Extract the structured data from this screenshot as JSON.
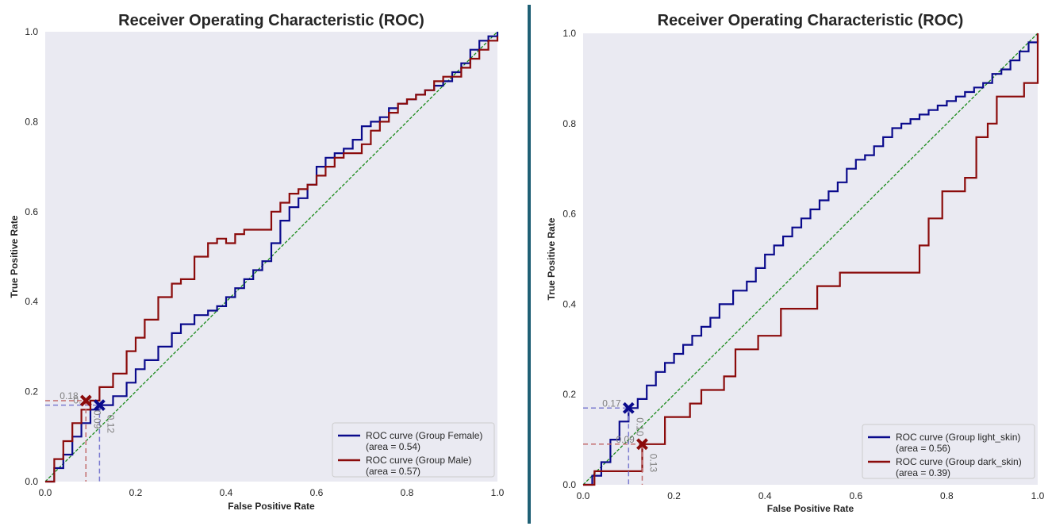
{
  "colors": {
    "plot_background": "#eaeaf2",
    "divider": "#1f6075",
    "series_1": "#0a0a8c",
    "series_2": "#8b0b0b",
    "diagonal": "#1a8a1a",
    "threshold_1": "#7b7bd0",
    "threshold_2": "#c26b6b",
    "text": "#262626",
    "threshold_text": "#808080"
  },
  "chart_data": [
    {
      "type": "line",
      "title": "Receiver Operating Characteristic (ROC)",
      "xlabel": "False Positive Rate",
      "ylabel": "True Positive Rate",
      "xlim": [
        0,
        1
      ],
      "ylim": [
        0,
        1
      ],
      "xticks": [
        "0.0",
        "0.2",
        "0.4",
        "0.6",
        "0.8",
        "1.0"
      ],
      "yticks": [
        "0.0",
        "0.2",
        "0.4",
        "0.6",
        "0.8",
        "1.0"
      ],
      "grid": false,
      "legend_position": "bottom-right",
      "diagonal": [
        [
          0,
          0
        ],
        [
          1,
          1
        ]
      ],
      "series": [
        {
          "name": "ROC curve (Group Female)",
          "area_label": "(area = 0.54)",
          "x": [
            0,
            0.02,
            0.04,
            0.06,
            0.08,
            0.1,
            0.12,
            0.15,
            0.18,
            0.2,
            0.22,
            0.25,
            0.28,
            0.3,
            0.33,
            0.36,
            0.38,
            0.4,
            0.42,
            0.44,
            0.46,
            0.48,
            0.5,
            0.52,
            0.54,
            0.56,
            0.58,
            0.6,
            0.62,
            0.64,
            0.66,
            0.68,
            0.7,
            0.72,
            0.74,
            0.76,
            0.78,
            0.8,
            0.82,
            0.84,
            0.86,
            0.88,
            0.9,
            0.92,
            0.94,
            0.96,
            0.98,
            1.0
          ],
          "y": [
            0,
            0.03,
            0.06,
            0.1,
            0.13,
            0.16,
            0.17,
            0.19,
            0.22,
            0.25,
            0.27,
            0.3,
            0.33,
            0.35,
            0.37,
            0.38,
            0.39,
            0.41,
            0.43,
            0.45,
            0.47,
            0.49,
            0.53,
            0.58,
            0.61,
            0.63,
            0.66,
            0.7,
            0.72,
            0.73,
            0.74,
            0.76,
            0.79,
            0.8,
            0.81,
            0.83,
            0.84,
            0.85,
            0.86,
            0.87,
            0.88,
            0.89,
            0.91,
            0.93,
            0.96,
            0.98,
            0.99,
            1.0
          ]
        },
        {
          "name": "ROC curve (Group Male)",
          "area_label": "(area = 0.57)",
          "x": [
            0,
            0.02,
            0.04,
            0.06,
            0.08,
            0.1,
            0.12,
            0.15,
            0.18,
            0.2,
            0.22,
            0.25,
            0.28,
            0.3,
            0.33,
            0.36,
            0.38,
            0.4,
            0.42,
            0.44,
            0.46,
            0.48,
            0.5,
            0.52,
            0.54,
            0.56,
            0.58,
            0.6,
            0.62,
            0.64,
            0.66,
            0.68,
            0.7,
            0.72,
            0.74,
            0.76,
            0.78,
            0.8,
            0.82,
            0.84,
            0.86,
            0.88,
            0.9,
            0.92,
            0.94,
            0.96,
            0.98,
            1.0
          ],
          "y": [
            0,
            0.05,
            0.09,
            0.13,
            0.16,
            0.18,
            0.21,
            0.24,
            0.29,
            0.32,
            0.36,
            0.41,
            0.44,
            0.45,
            0.5,
            0.53,
            0.54,
            0.53,
            0.55,
            0.56,
            0.56,
            0.56,
            0.6,
            0.62,
            0.64,
            0.65,
            0.66,
            0.68,
            0.7,
            0.72,
            0.73,
            0.73,
            0.75,
            0.78,
            0.8,
            0.82,
            0.84,
            0.85,
            0.86,
            0.87,
            0.89,
            0.9,
            0.9,
            0.92,
            0.94,
            0.96,
            0.98,
            0.99
          ]
        }
      ],
      "thresholds": [
        {
          "series": 0,
          "fpr": 0.12,
          "tpr": 0.17,
          "fpr_label": "0.12",
          "tpr_label": "0.17"
        },
        {
          "series": 1,
          "fpr": 0.09,
          "tpr": 0.18,
          "fpr_label": "0.09",
          "tpr_label": "0.18"
        }
      ]
    },
    {
      "type": "line",
      "title": "Receiver Operating Characteristic (ROC)",
      "xlabel": "False Positive Rate",
      "ylabel": "True Positive Rate",
      "xlim": [
        0,
        1
      ],
      "ylim": [
        0,
        1
      ],
      "xticks": [
        "0.0",
        "0.2",
        "0.4",
        "0.6",
        "0.8",
        "1.0"
      ],
      "yticks": [
        "0.0",
        "0.2",
        "0.4",
        "0.6",
        "0.8",
        "1.0"
      ],
      "grid": false,
      "legend_position": "bottom-right",
      "diagonal": [
        [
          0,
          0
        ],
        [
          1,
          1
        ]
      ],
      "series": [
        {
          "name": "ROC curve (Group light_skin)",
          "area_label": "(area = 0.56)",
          "x": [
            0,
            0.02,
            0.04,
            0.06,
            0.08,
            0.1,
            0.12,
            0.14,
            0.16,
            0.18,
            0.2,
            0.22,
            0.24,
            0.26,
            0.28,
            0.3,
            0.33,
            0.36,
            0.38,
            0.4,
            0.42,
            0.44,
            0.46,
            0.48,
            0.5,
            0.52,
            0.54,
            0.56,
            0.58,
            0.6,
            0.62,
            0.64,
            0.66,
            0.68,
            0.7,
            0.72,
            0.74,
            0.76,
            0.78,
            0.8,
            0.82,
            0.84,
            0.86,
            0.88,
            0.9,
            0.92,
            0.94,
            0.96,
            0.98,
            1.0
          ],
          "y": [
            0,
            0.02,
            0.05,
            0.1,
            0.14,
            0.17,
            0.19,
            0.22,
            0.25,
            0.27,
            0.29,
            0.31,
            0.33,
            0.35,
            0.37,
            0.4,
            0.43,
            0.45,
            0.48,
            0.51,
            0.53,
            0.55,
            0.57,
            0.59,
            0.61,
            0.63,
            0.65,
            0.67,
            0.7,
            0.72,
            0.73,
            0.75,
            0.77,
            0.79,
            0.8,
            0.81,
            0.82,
            0.83,
            0.84,
            0.85,
            0.86,
            0.87,
            0.88,
            0.89,
            0.91,
            0.92,
            0.94,
            0.96,
            0.98,
            1.0
          ]
        },
        {
          "name": "ROC curve (Group dark_skin)",
          "area_label": "(area = 0.39)",
          "x": [
            0,
            0.025,
            0.025,
            0.13,
            0.13,
            0.18,
            0.18,
            0.235,
            0.235,
            0.26,
            0.26,
            0.31,
            0.31,
            0.335,
            0.335,
            0.385,
            0.385,
            0.435,
            0.435,
            0.515,
            0.515,
            0.565,
            0.565,
            0.74,
            0.74,
            0.76,
            0.76,
            0.79,
            0.79,
            0.84,
            0.84,
            0.865,
            0.865,
            0.89,
            0.89,
            0.91,
            0.91,
            0.95,
            0.95,
            0.97,
            0.97,
            1.0,
            1.0
          ],
          "y": [
            0,
            0,
            0.03,
            0.03,
            0.09,
            0.09,
            0.15,
            0.15,
            0.18,
            0.18,
            0.21,
            0.21,
            0.24,
            0.24,
            0.3,
            0.3,
            0.33,
            0.33,
            0.39,
            0.39,
            0.44,
            0.44,
            0.47,
            0.47,
            0.53,
            0.53,
            0.59,
            0.59,
            0.65,
            0.65,
            0.68,
            0.68,
            0.77,
            0.77,
            0.8,
            0.8,
            0.86,
            0.86,
            0.86,
            0.86,
            0.89,
            0.89,
            1.0
          ]
        }
      ],
      "thresholds": [
        {
          "series": 0,
          "fpr": 0.1,
          "tpr": 0.17,
          "fpr_label": "0.10",
          "tpr_label": "0.17"
        },
        {
          "series": 1,
          "fpr": 0.13,
          "tpr": 0.09,
          "fpr_label": "0.13",
          "tpr_label": "0.09"
        }
      ]
    }
  ]
}
